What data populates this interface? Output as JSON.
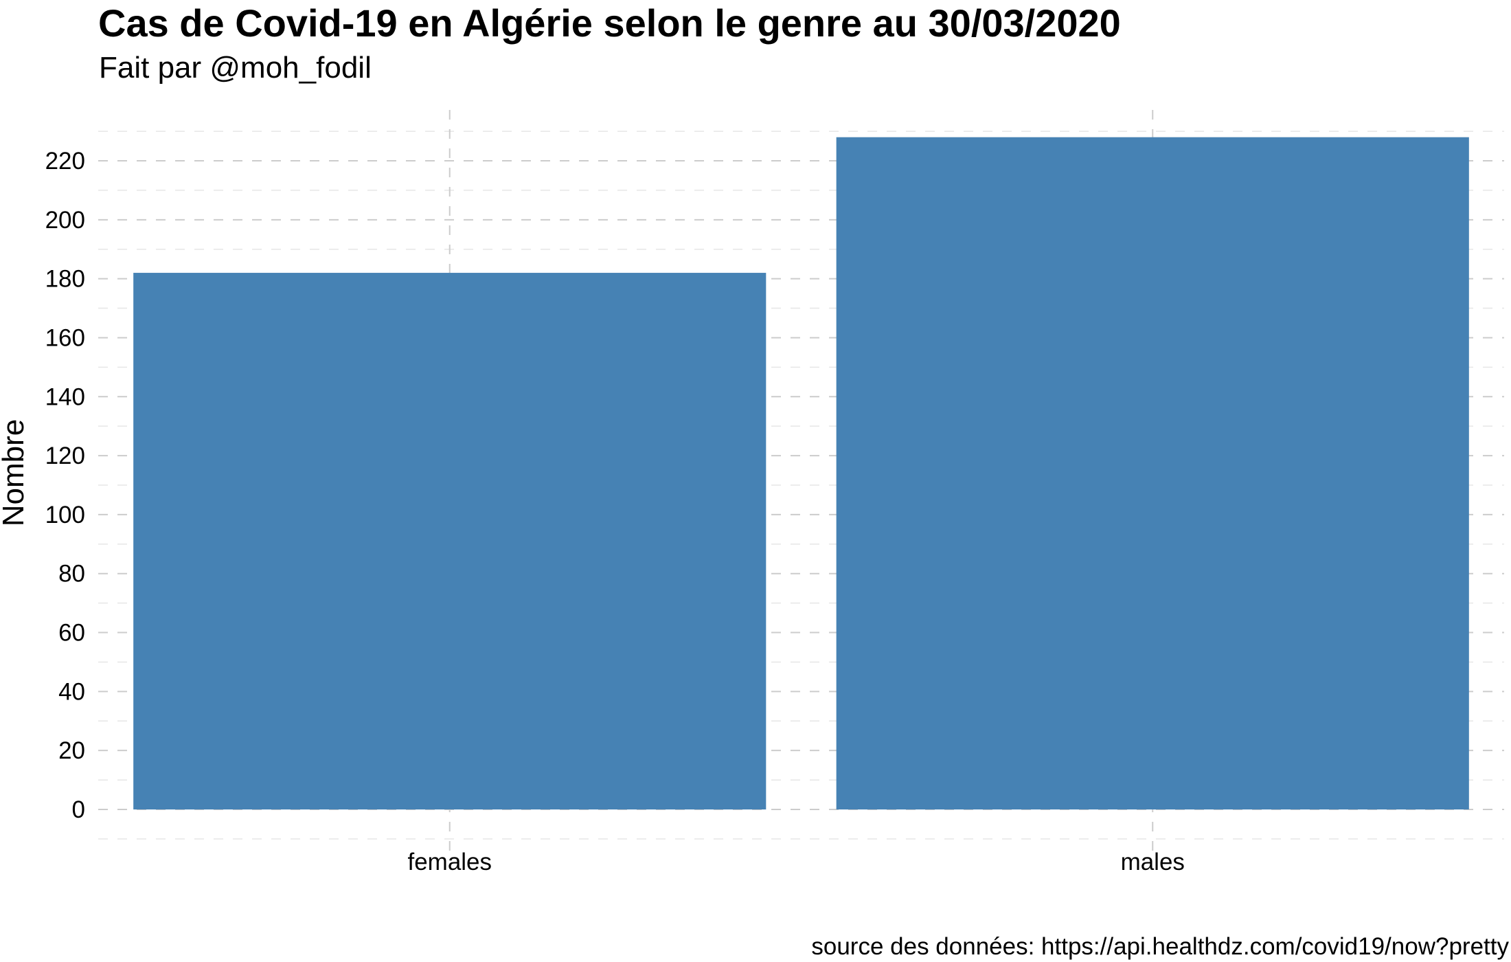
{
  "chart_data": {
    "type": "bar",
    "title": "Cas de Covid-19 en Algérie selon le genre au 30/03/2020",
    "subtitle": "Fait par @moh_fodil",
    "caption": "source des données: https://api.healthdz.com/covid19/now?pretty",
    "xlabel": "",
    "ylabel": "Nombre",
    "categories": [
      "females",
      "males"
    ],
    "values": [
      182,
      228
    ],
    "ylim": [
      -10,
      230
    ],
    "yticks": [
      0,
      20,
      40,
      60,
      80,
      100,
      120,
      140,
      160,
      180,
      200,
      220
    ],
    "grid": true,
    "grid_style": "dashed",
    "legend": "none",
    "bar_color": "#4682B4",
    "grid_color": "#CCCCCC"
  }
}
